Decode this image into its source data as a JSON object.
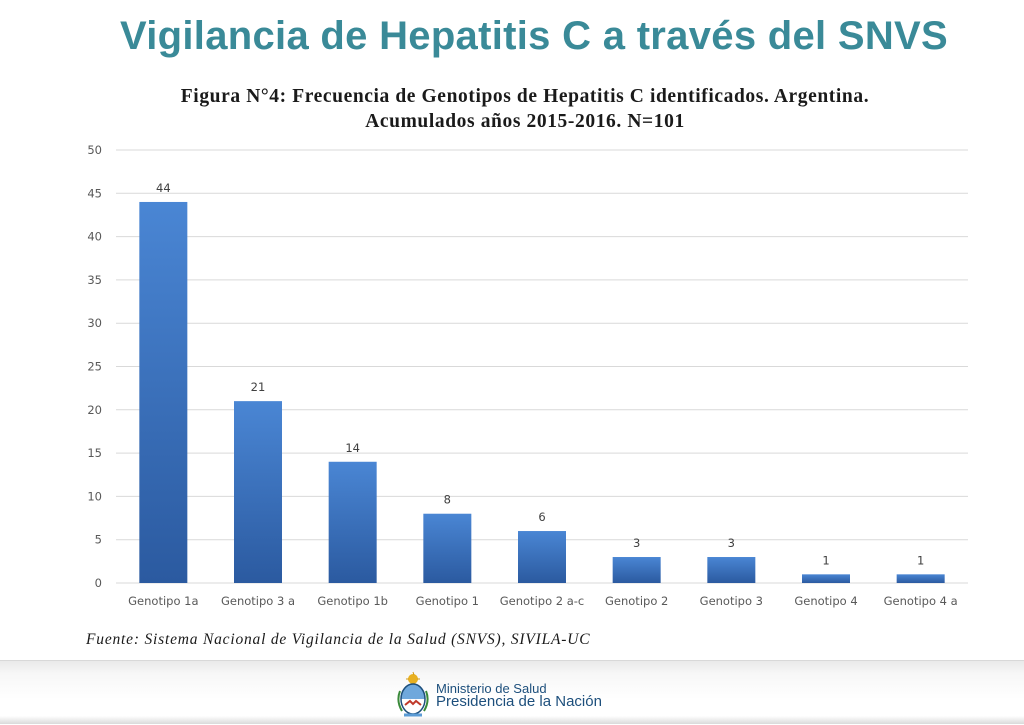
{
  "header": {
    "title": "Vigilancia de Hepatitis C a través del SNVS"
  },
  "figure": {
    "caption_line1": "Figura N°4: Frecuencia de Genotipos de Hepatitis C identificados. Argentina.",
    "caption_line2": "Acumulados años 2015-2016. N=101"
  },
  "chart_data": {
    "type": "bar",
    "title": "Figura N°4: Frecuencia de Genotipos de Hepatitis C identificados. Argentina. Acumulados años 2015-2016. N=101",
    "categories": [
      "Genotipo 1a",
      "Genotipo 3 a",
      "Genotipo 1b",
      "Genotipo 1",
      "Genotipo 2 a-c",
      "Genotipo 2",
      "Genotipo 3",
      "Genotipo 4",
      "Genotipo 4 a"
    ],
    "values": [
      44,
      21,
      14,
      8,
      6,
      3,
      3,
      1,
      1
    ],
    "xlabel": "",
    "ylabel": "",
    "ylim": [
      0,
      50
    ],
    "yticks": [
      0,
      5,
      10,
      15,
      20,
      25,
      30,
      35,
      40,
      45,
      50
    ],
    "grid": true,
    "data_labels": true,
    "legend": "none",
    "colors": {
      "bar_top": "#4a86d4",
      "bar_bottom": "#2b5aa0",
      "grid": "#d9d9d9"
    }
  },
  "source": {
    "text": "Fuente: Sistema Nacional de Vigilancia de la Salud (SNVS), SIVILA-UC"
  },
  "footer": {
    "ministry_line1": "Ministerio de Salud",
    "ministry_line2": "Presidencia de la Nación",
    "logo_icon": "argentina-coat-of-arms-icon"
  }
}
